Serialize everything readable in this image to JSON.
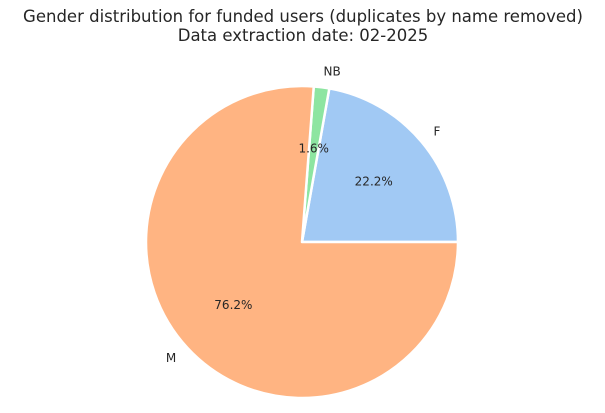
{
  "chart_data": {
    "type": "pie",
    "title": "Gender distribution for funded users (duplicates by name removed)",
    "subtitle": "Data extraction date: 02-2025",
    "slices": [
      {
        "label": "F",
        "value": 22.2,
        "pct_label": "22.2%",
        "color": "#a1c9f4"
      },
      {
        "label": "NB",
        "value": 1.6,
        "pct_label": "1.6%",
        "color": "#8de5a1"
      },
      {
        "label": "M",
        "value": 76.2,
        "pct_label": "76.2%",
        "color": "#ffb482"
      }
    ],
    "start_angle_deg": 0,
    "direction": "counterclockwise",
    "edge_color": "#ffffff"
  }
}
